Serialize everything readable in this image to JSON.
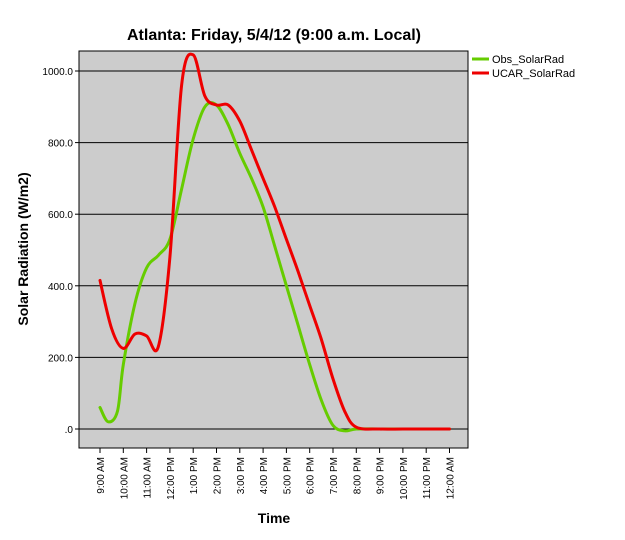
{
  "chart_data": {
    "type": "line",
    "title": "Atlanta: Friday, 5/4/12 (9:00 a.m. Local)",
    "xlabel": "Time",
    "ylabel": "Solar Radiation (W/m2)",
    "categories": [
      "9:00 AM",
      "10:00 AM",
      "11:00 AM",
      "12:00 PM",
      "1:00 PM",
      "2:00 PM",
      "3:00 PM",
      "4:00 PM",
      "5:00 PM",
      "6:00 PM",
      "7:00 PM",
      "8:00 PM",
      "9:00 PM",
      "10:00 PM",
      "11:00 PM",
      "12:00 AM"
    ],
    "ylim": [
      0,
      1050
    ],
    "yticks": [
      {
        "value": 0,
        "label": ".0"
      },
      {
        "value": 200,
        "label": "200.0"
      },
      {
        "value": 400,
        "label": "400.0"
      },
      {
        "value": 600,
        "label": "600.0"
      },
      {
        "value": 800,
        "label": "800.0"
      },
      {
        "value": 1000,
        "label": "1000.0"
      }
    ],
    "grid": "horizontal",
    "legend_position": "top-right",
    "series": [
      {
        "name": "Obs_SolarRad",
        "color": "#66cc00",
        "points": [
          [
            0,
            60
          ],
          [
            0.35,
            20
          ],
          [
            0.75,
            50
          ],
          [
            1,
            180
          ],
          [
            1.5,
            350
          ],
          [
            2,
            450
          ],
          [
            2.5,
            485
          ],
          [
            3,
            530
          ],
          [
            3.5,
            670
          ],
          [
            4,
            810
          ],
          [
            4.5,
            900
          ],
          [
            5,
            905
          ],
          [
            5.5,
            850
          ],
          [
            6,
            770
          ],
          [
            6.5,
            700
          ],
          [
            7,
            620
          ],
          [
            7.5,
            510
          ],
          [
            8,
            400
          ],
          [
            8.5,
            290
          ],
          [
            9,
            180
          ],
          [
            9.5,
            80
          ],
          [
            10,
            10
          ],
          [
            10.5,
            -5
          ],
          [
            11,
            0
          ],
          [
            12,
            0
          ],
          [
            13,
            0
          ],
          [
            14,
            0
          ],
          [
            15,
            0
          ]
        ]
      },
      {
        "name": "UCAR_SolarRad",
        "color": "#ee0000",
        "points": [
          [
            0,
            415
          ],
          [
            0.5,
            280
          ],
          [
            1,
            225
          ],
          [
            1.5,
            265
          ],
          [
            2,
            260
          ],
          [
            2.5,
            230
          ],
          [
            3,
            480
          ],
          [
            3.5,
            960
          ],
          [
            4,
            1045
          ],
          [
            4.5,
            930
          ],
          [
            5,
            905
          ],
          [
            5.5,
            905
          ],
          [
            6,
            860
          ],
          [
            6.5,
            780
          ],
          [
            7,
            700
          ],
          [
            7.5,
            620
          ],
          [
            8,
            530
          ],
          [
            8.5,
            440
          ],
          [
            9,
            345
          ],
          [
            9.5,
            250
          ],
          [
            10,
            140
          ],
          [
            10.5,
            50
          ],
          [
            11,
            5
          ],
          [
            12,
            0
          ],
          [
            13,
            0
          ],
          [
            14,
            0
          ],
          [
            15,
            0
          ]
        ]
      }
    ]
  }
}
